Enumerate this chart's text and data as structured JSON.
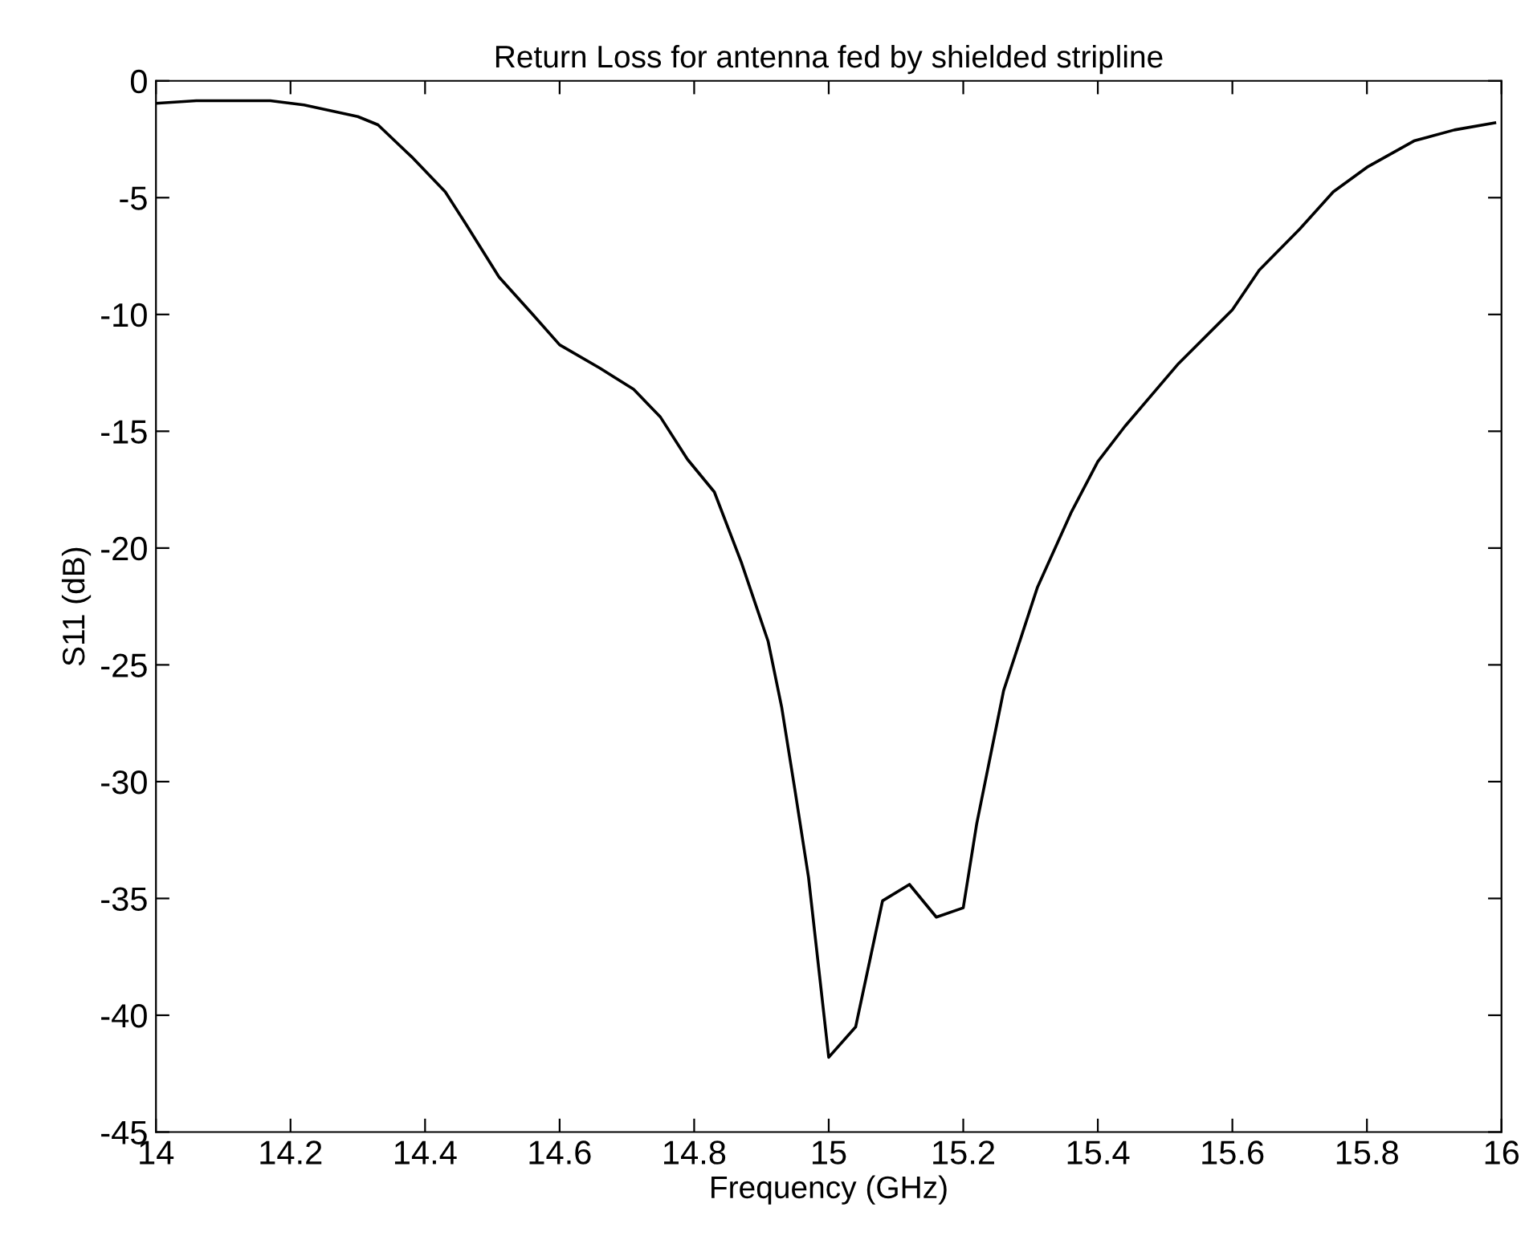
{
  "chart_data": {
    "type": "line",
    "title": "Return Loss for antenna fed by shielded stripline",
    "xlabel": "Frequency (GHz)",
    "ylabel": "S11 (dB)",
    "xlim": [
      14,
      16
    ],
    "xticks": [
      14,
      14.2,
      14.4,
      14.6,
      14.8,
      15,
      15.2,
      15.4,
      15.6,
      15.8,
      16
    ],
    "ylim": [
      -45,
      0
    ],
    "yticks": [
      0,
      -5,
      -10,
      -15,
      -20,
      -25,
      -30,
      -35,
      -40,
      -45
    ],
    "grid": false,
    "legend": false,
    "marker": "none",
    "line_style": "solid",
    "series": [
      {
        "color": "#000000",
        "x": [
          14.0,
          14.06,
          14.17,
          14.22,
          14.3,
          14.33,
          14.38,
          14.43,
          14.46,
          14.51,
          14.56,
          14.6,
          14.66,
          14.71,
          14.75,
          14.79,
          14.83,
          14.87,
          14.91,
          14.93,
          14.95,
          14.97,
          15.0,
          15.04,
          15.08,
          15.12,
          15.16,
          15.2,
          15.22,
          15.26,
          15.31,
          15.36,
          15.4,
          15.44,
          15.52,
          15.6,
          15.64,
          15.7,
          15.75,
          15.8,
          15.87,
          15.93,
          15.99
        ],
        "values": [
          -0.96,
          -0.85,
          -0.85,
          -1.03,
          -1.53,
          -1.88,
          -3.25,
          -4.75,
          -6.1,
          -8.4,
          -10.0,
          -11.3,
          -12.3,
          -13.2,
          -14.4,
          -16.2,
          -17.6,
          -20.6,
          -24.0,
          -26.8,
          -30.4,
          -34.1,
          -41.8,
          -40.5,
          -35.1,
          -34.4,
          -35.8,
          -35.4,
          -31.8,
          -26.1,
          -21.7,
          -18.5,
          -16.3,
          -14.8,
          -12.1,
          -9.8,
          -8.1,
          -6.35,
          -4.75,
          -3.7,
          -2.57,
          -2.1,
          -1.8
        ]
      }
    ]
  }
}
